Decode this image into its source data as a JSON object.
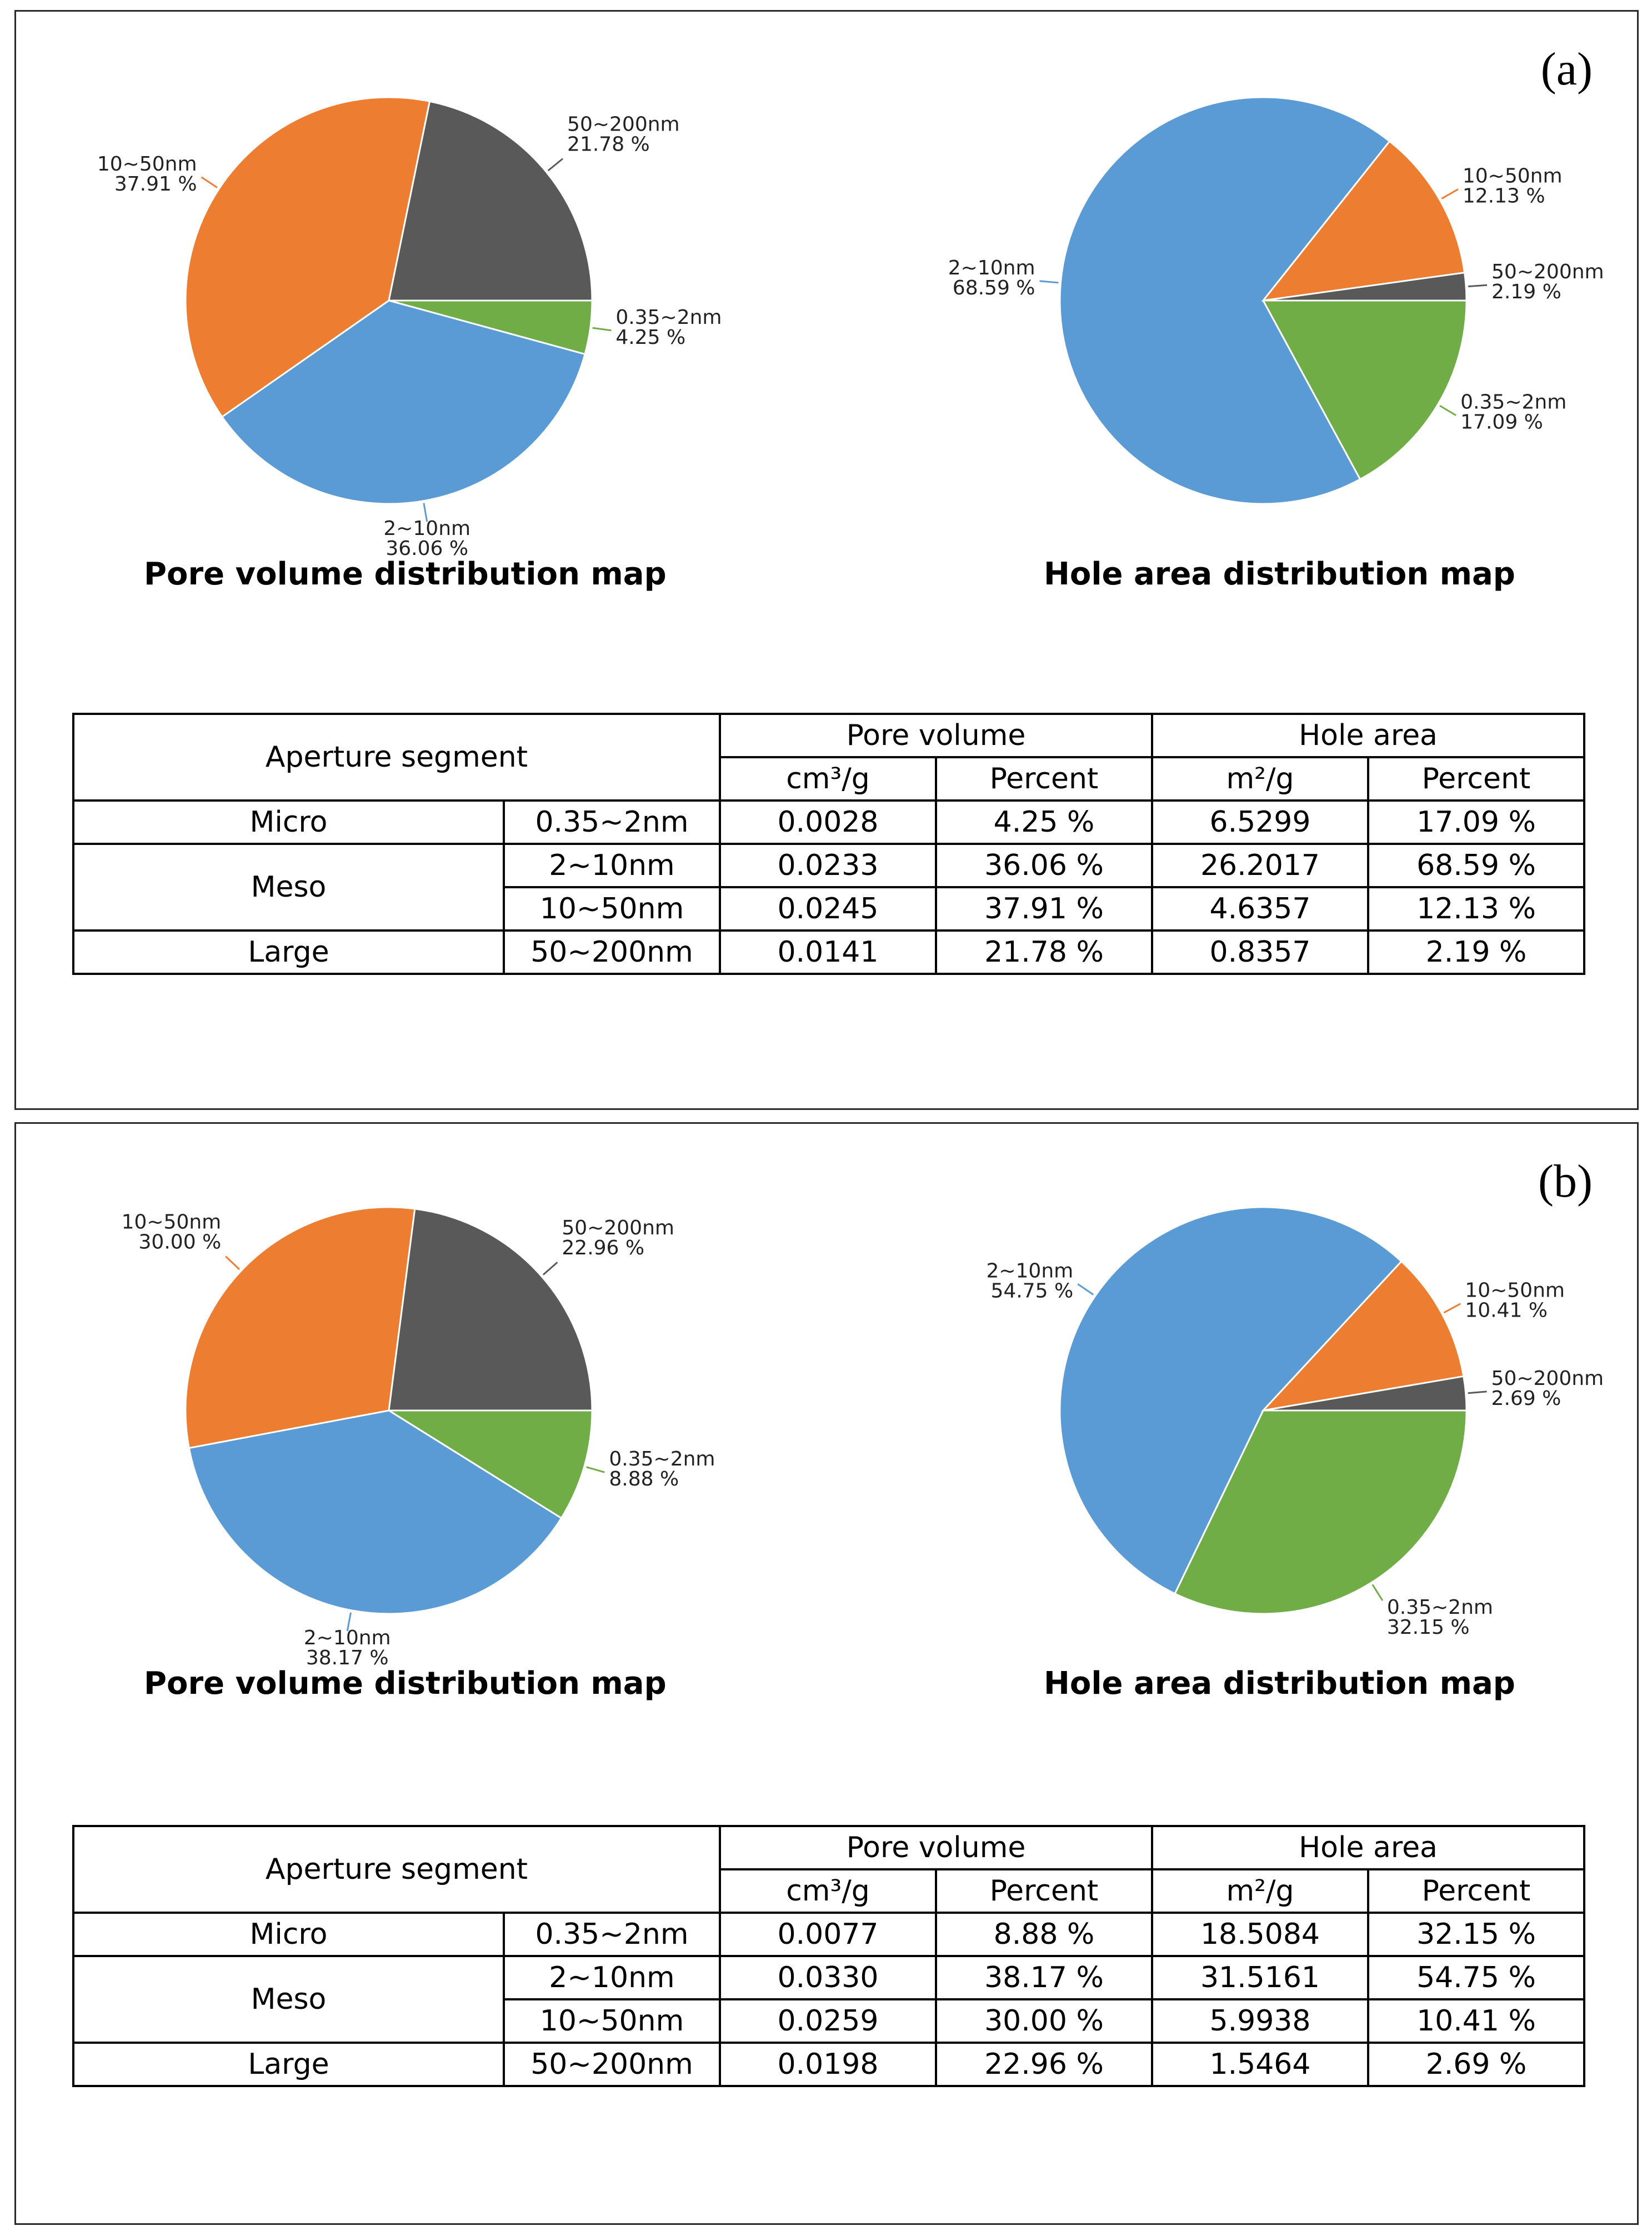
{
  "chart_data": [
    {
      "panel": "(a)",
      "type": "pie",
      "title": "Pore volume distribution map",
      "slices": [
        {
          "label": "0.35~2nm",
          "percent": "4.25 %",
          "value": 4.25,
          "color": "#70ad47"
        },
        {
          "label": "2~10nm",
          "percent": "36.06 %",
          "value": 36.06,
          "color": "#5b9bd5"
        },
        {
          "label": "10~50nm",
          "percent": "37.91 %",
          "value": 37.91,
          "color": "#ed7d31"
        },
        {
          "label": "50~200nm",
          "percent": "21.78 %",
          "value": 21.78,
          "color": "#595959"
        }
      ]
    },
    {
      "panel": "(a)",
      "type": "pie",
      "title": "Hole area distribution map",
      "slices": [
        {
          "label": "0.35~2nm",
          "percent": "17.09 %",
          "value": 17.09,
          "color": "#70ad47"
        },
        {
          "label": "2~10nm",
          "percent": "68.59 %",
          "value": 68.59,
          "color": "#5b9bd5"
        },
        {
          "label": "10~50nm",
          "percent": "12.13 %",
          "value": 12.13,
          "color": "#ed7d31"
        },
        {
          "label": "50~200nm",
          "percent": "2.19 %",
          "value": 2.19,
          "color": "#595959"
        }
      ]
    },
    {
      "panel": "(b)",
      "type": "pie",
      "title": "Pore volume distribution map",
      "slices": [
        {
          "label": "0.35~2nm",
          "percent": "8.88 %",
          "value": 8.88,
          "color": "#70ad47"
        },
        {
          "label": "2~10nm",
          "percent": "38.17 %",
          "value": 38.17,
          "color": "#5b9bd5"
        },
        {
          "label": "10~50nm",
          "percent": "30.00 %",
          "value": 30.0,
          "color": "#ed7d31"
        },
        {
          "label": "50~200nm",
          "percent": "22.96 %",
          "value": 22.96,
          "color": "#595959"
        }
      ]
    },
    {
      "panel": "(b)",
      "type": "pie",
      "title": "Hole area distribution map",
      "slices": [
        {
          "label": "0.35~2nm",
          "percent": "32.15 %",
          "value": 32.15,
          "color": "#70ad47"
        },
        {
          "label": "2~10nm",
          "percent": "54.75 %",
          "value": 54.75,
          "color": "#5b9bd5"
        },
        {
          "label": "10~50nm",
          "percent": "10.41 %",
          "value": 10.41,
          "color": "#ed7d31"
        },
        {
          "label": "50~200nm",
          "percent": "2.69 %",
          "value": 2.69,
          "color": "#595959"
        }
      ]
    }
  ],
  "panels": [
    {
      "label": "(a)",
      "table": {
        "header": {
          "segment": "Aperture segment",
          "pore_volume": "Pore volume",
          "hole_area": "Hole area",
          "unit_volume": "cm³/g",
          "unit_area": "m²/g",
          "percent": "Percent"
        },
        "rows": [
          {
            "group": "Micro",
            "range": "0.35~2nm",
            "vol": "0.0028",
            "vol_pct": "4.25 %",
            "area": "6.5299",
            "area_pct": "17.09 %"
          },
          {
            "group": "Meso",
            "range": "2~10nm",
            "vol": "0.0233",
            "vol_pct": "36.06 %",
            "area": "26.2017",
            "area_pct": "68.59 %"
          },
          {
            "group": "",
            "range": "10~50nm",
            "vol": "0.0245",
            "vol_pct": "37.91 %",
            "area": "4.6357",
            "area_pct": "12.13 %"
          },
          {
            "group": "Large",
            "range": "50~200nm",
            "vol": "0.0141",
            "vol_pct": "21.78 %",
            "area": "0.8357",
            "area_pct": "2.19 %"
          }
        ]
      }
    },
    {
      "label": "(b)",
      "table": {
        "header": {
          "segment": "Aperture segment",
          "pore_volume": "Pore volume",
          "hole_area": "Hole area",
          "unit_volume": "cm³/g",
          "unit_area": "m²/g",
          "percent": "Percent"
        },
        "rows": [
          {
            "group": "Micro",
            "range": "0.35~2nm",
            "vol": "0.0077",
            "vol_pct": "8.88 %",
            "area": "18.5084",
            "area_pct": "32.15 %"
          },
          {
            "group": "Meso",
            "range": "2~10nm",
            "vol": "0.0330",
            "vol_pct": "38.17 %",
            "area": "31.5161",
            "area_pct": "54.75 %"
          },
          {
            "group": "",
            "range": "10~50nm",
            "vol": "0.0259",
            "vol_pct": "30.00 %",
            "area": "5.9938",
            "area_pct": "10.41 %"
          },
          {
            "group": "Large",
            "range": "50~200nm",
            "vol": "0.0198",
            "vol_pct": "22.96 %",
            "area": "1.5464",
            "area_pct": "2.69 %"
          }
        ]
      }
    }
  ]
}
